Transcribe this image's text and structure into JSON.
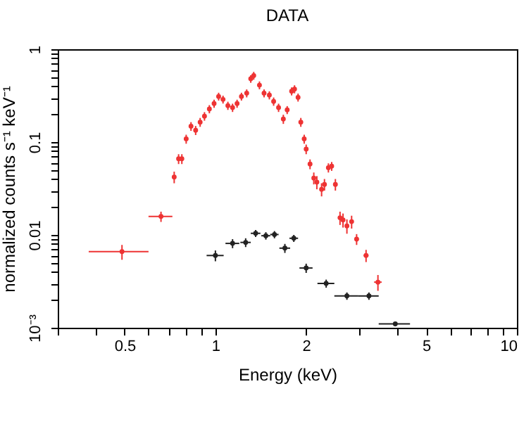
{
  "chart_data": {
    "type": "scatter",
    "title": "DATA",
    "xlabel": "Energy (keV)",
    "ylabel": "normalized counts s⁻¹ keV⁻¹",
    "log": "xy",
    "grid": false,
    "xlim": [
      0.3,
      10
    ],
    "xticks": [
      {
        "value": 0.3,
        "label": null
      },
      {
        "value": 0.4,
        "label": null
      },
      0.5,
      {
        "value": 0.6,
        "label": null
      },
      {
        "value": 0.7,
        "label": null
      },
      {
        "value": 0.8,
        "label": null
      },
      {
        "value": 0.9,
        "label": null
      },
      1,
      2,
      {
        "value": 3,
        "label": null
      },
      {
        "value": 4,
        "label": null
      },
      5,
      {
        "value": 6,
        "label": null
      },
      {
        "value": 7,
        "label": null
      },
      {
        "value": 8,
        "label": null
      },
      {
        "value": 9,
        "label": null
      },
      10
    ],
    "ylim": [
      0.001,
      1
    ],
    "yticks": [
      {
        "value": 0.001,
        "label": "10⁻³"
      },
      {
        "value": 0.002,
        "label": null
      },
      {
        "value": 0.003,
        "label": null
      },
      {
        "value": 0.004,
        "label": null
      },
      {
        "value": 0.005,
        "label": null
      },
      {
        "value": 0.006,
        "label": null
      },
      {
        "value": 0.007,
        "label": null
      },
      {
        "value": 0.008,
        "label": null
      },
      {
        "value": 0.009,
        "label": null
      },
      0.01,
      {
        "value": 0.02,
        "label": null
      },
      {
        "value": 0.03,
        "label": null
      },
      {
        "value": 0.04,
        "label": null
      },
      {
        "value": 0.05,
        "label": null
      },
      {
        "value": 0.06,
        "label": null
      },
      {
        "value": 0.07,
        "label": null
      },
      {
        "value": 0.08,
        "label": null
      },
      {
        "value": 0.09,
        "label": null
      },
      0.1,
      {
        "value": 0.2,
        "label": null
      },
      {
        "value": 0.3,
        "label": null
      },
      {
        "value": 0.4,
        "label": null
      },
      {
        "value": 0.5,
        "label": null
      },
      {
        "value": 0.6,
        "label": null
      },
      {
        "value": 0.7,
        "label": null
      },
      {
        "value": 0.8,
        "label": null
      },
      {
        "value": 0.9,
        "label": null
      },
      1
    ],
    "series": [
      {
        "color": "#ee3333",
        "x": [
          0.49,
          0.66,
          0.73,
          0.755,
          0.774,
          0.8,
          0.83,
          0.86,
          0.89,
          0.92,
          0.955,
          0.99,
          1.025,
          1.06,
          1.1,
          1.14,
          1.18,
          1.22,
          1.27,
          1.31,
          1.34,
          1.4,
          1.45,
          1.51,
          1.56,
          1.62,
          1.68,
          1.73,
          1.79,
          1.83,
          1.88,
          1.92,
          1.97,
          2.0,
          2.06,
          2.12,
          2.17,
          2.25,
          2.3,
          2.37,
          2.43,
          2.5,
          2.59,
          2.65,
          2.73,
          2.83,
          2.94,
          3.16,
          3.46
        ],
        "values": [
          0.0066,
          0.0158,
          0.042,
          0.066,
          0.066,
          0.108,
          0.148,
          0.134,
          0.164,
          0.19,
          0.227,
          0.26,
          0.31,
          0.288,
          0.247,
          0.235,
          0.26,
          0.31,
          0.336,
          0.48,
          0.52,
          0.41,
          0.336,
          0.32,
          0.274,
          0.235,
          0.177,
          0.222,
          0.353,
          0.372,
          0.303,
          0.164,
          0.108,
          0.084,
          0.058,
          0.041,
          0.037,
          0.031,
          0.035,
          0.053,
          0.055,
          0.035,
          0.0153,
          0.0145,
          0.0125,
          0.0139,
          0.009,
          0.006,
          0.0031
        ],
        "errors": [
          0.0012,
          0.002,
          0.006,
          0.008,
          0.008,
          0.012,
          0.016,
          0.015,
          0.018,
          0.02,
          0.023,
          0.026,
          0.03,
          0.028,
          0.025,
          0.024,
          0.026,
          0.03,
          0.033,
          0.045,
          0.05,
          0.04,
          0.033,
          0.032,
          0.028,
          0.024,
          0.02,
          0.022,
          0.035,
          0.037,
          0.03,
          0.018,
          0.012,
          0.01,
          0.007,
          0.006,
          0.006,
          0.005,
          0.005,
          0.006,
          0.006,
          0.005,
          0.0025,
          0.0025,
          0.0022,
          0.0022,
          0.0012,
          0.0009,
          0.0006
        ],
        "xerrors": [
          0.11,
          0.06,
          0.01,
          0.01,
          0.01,
          0.012,
          0.012,
          0.012,
          0.012,
          0.012,
          0.012,
          0.012,
          0.012,
          0.012,
          0.012,
          0.012,
          0.012,
          0.012,
          0.012,
          0.012,
          0.012,
          0.015,
          0.015,
          0.015,
          0.015,
          0.015,
          0.015,
          0.015,
          0.015,
          0.015,
          0.015,
          0.015,
          0.015,
          0.015,
          0.015,
          0.02,
          0.02,
          0.02,
          0.02,
          0.02,
          0.02,
          0.02,
          0.03,
          0.03,
          0.03,
          0.03,
          0.05,
          0.06,
          0.1
        ]
      },
      {
        "color": "#222222",
        "x": [
          1.0,
          1.14,
          1.26,
          1.36,
          1.47,
          1.57,
          1.7,
          1.82,
          2.0,
          2.33,
          2.73,
          3.23,
          3.95
        ],
        "values": [
          0.006,
          0.0081,
          0.0083,
          0.0104,
          0.0098,
          0.0101,
          0.0072,
          0.0092,
          0.0044,
          0.003,
          0.0022,
          0.0022,
          0.0011
        ],
        "errors": [
          0.0008,
          0.0009,
          0.0009,
          0.0009,
          0.0009,
          0.0009,
          0.0008,
          0.0008,
          0.0005,
          0.0003,
          0.0002,
          0.0002,
          null
        ],
        "xerrors": [
          0.065,
          0.06,
          0.05,
          0.05,
          0.05,
          0.05,
          0.07,
          0.06,
          0.1,
          0.15,
          0.25,
          0.25,
          0.47
        ]
      }
    ]
  }
}
